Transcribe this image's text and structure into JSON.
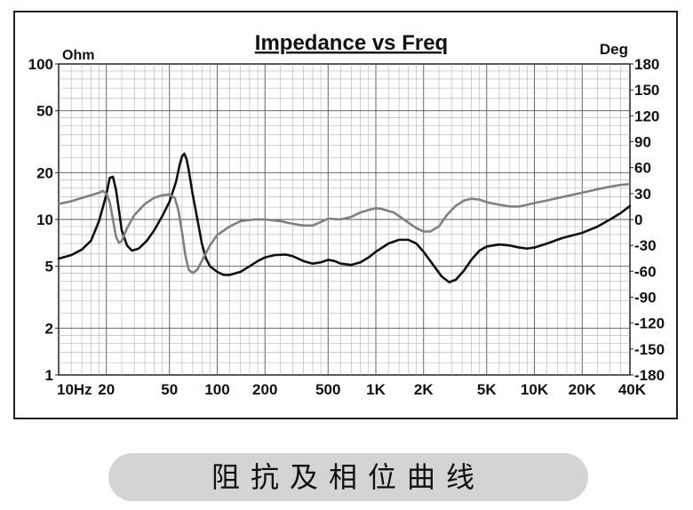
{
  "caption": "阻抗及相位曲线",
  "chart_data": {
    "type": "line",
    "title": "Impedance vs Freq",
    "left_unit": "Ohm",
    "right_unit": "Deg",
    "x_scale": "log",
    "xlim": [
      10,
      40000
    ],
    "left_scale": "log",
    "left_ylim": [
      1,
      100
    ],
    "right_ylim": [
      -180,
      180
    ],
    "grid": true,
    "x_tick_labels": [
      {
        "value": 10,
        "label": "10Hz"
      },
      {
        "value": 20,
        "label": "20"
      },
      {
        "value": 50,
        "label": "50"
      },
      {
        "value": 100,
        "label": "100"
      },
      {
        "value": 200,
        "label": "200"
      },
      {
        "value": 500,
        "label": "500"
      },
      {
        "value": 1000,
        "label": "1K"
      },
      {
        "value": 2000,
        "label": "2K"
      },
      {
        "value": 5000,
        "label": "5K"
      },
      {
        "value": 10000,
        "label": "10K"
      },
      {
        "value": 20000,
        "label": "20K"
      },
      {
        "value": 40000,
        "label": "40K"
      }
    ],
    "left_tick_labels": [
      {
        "value": 100,
        "label": "100"
      },
      {
        "value": 50,
        "label": "50"
      },
      {
        "value": 20,
        "label": "20"
      },
      {
        "value": 10,
        "label": "10"
      },
      {
        "value": 5,
        "label": "5"
      },
      {
        "value": 2,
        "label": "2"
      },
      {
        "value": 1,
        "label": "1"
      }
    ],
    "right_tick_labels": [
      {
        "value": 180,
        "label": "180"
      },
      {
        "value": 150,
        "label": "150"
      },
      {
        "value": 120,
        "label": "120"
      },
      {
        "value": 90,
        "label": "90"
      },
      {
        "value": 60,
        "label": "60"
      },
      {
        "value": 30,
        "label": "30"
      },
      {
        "value": 0,
        "label": "0"
      },
      {
        "value": -30,
        "label": "-30"
      },
      {
        "value": -60,
        "label": "-60"
      },
      {
        "value": -90,
        "label": "-90"
      },
      {
        "value": -120,
        "label": "-120"
      },
      {
        "value": -150,
        "label": "-150"
      },
      {
        "value": -180,
        "label": "-180"
      }
    ],
    "series": [
      {
        "axis": "left",
        "color": "#111111",
        "points": [
          [
            10,
            5.6
          ],
          [
            12,
            5.9
          ],
          [
            14,
            6.4
          ],
          [
            16,
            7.3
          ],
          [
            18,
            9.8
          ],
          [
            20,
            14.5
          ],
          [
            21,
            18.5
          ],
          [
            22,
            18.8
          ],
          [
            23,
            15.5
          ],
          [
            24,
            11.5
          ],
          [
            25,
            8.5
          ],
          [
            27,
            6.8
          ],
          [
            29,
            6.3
          ],
          [
            32,
            6.5
          ],
          [
            36,
            7.3
          ],
          [
            40,
            8.5
          ],
          [
            45,
            10.5
          ],
          [
            50,
            13
          ],
          [
            55,
            17.5
          ],
          [
            58,
            22.5
          ],
          [
            60,
            25.5
          ],
          [
            62,
            26.5
          ],
          [
            64,
            24.5
          ],
          [
            66,
            21
          ],
          [
            70,
            14.5
          ],
          [
            75,
            10
          ],
          [
            80,
            7
          ],
          [
            85,
            5.6
          ],
          [
            90,
            5
          ],
          [
            100,
            4.6
          ],
          [
            110,
            4.4
          ],
          [
            120,
            4.4
          ],
          [
            140,
            4.6
          ],
          [
            160,
            5
          ],
          [
            180,
            5.4
          ],
          [
            200,
            5.7
          ],
          [
            230,
            5.9
          ],
          [
            270,
            5.95
          ],
          [
            300,
            5.8
          ],
          [
            350,
            5.4
          ],
          [
            400,
            5.2
          ],
          [
            450,
            5.3
          ],
          [
            500,
            5.5
          ],
          [
            550,
            5.4
          ],
          [
            600,
            5.2
          ],
          [
            700,
            5.1
          ],
          [
            800,
            5.3
          ],
          [
            900,
            5.7
          ],
          [
            1000,
            6.2
          ],
          [
            1200,
            7
          ],
          [
            1400,
            7.4
          ],
          [
            1600,
            7.4
          ],
          [
            1800,
            7
          ],
          [
            2000,
            6.2
          ],
          [
            2300,
            5.1
          ],
          [
            2600,
            4.3
          ],
          [
            2900,
            3.95
          ],
          [
            3200,
            4.1
          ],
          [
            3600,
            4.7
          ],
          [
            4000,
            5.5
          ],
          [
            4500,
            6.3
          ],
          [
            5000,
            6.7
          ],
          [
            6000,
            6.9
          ],
          [
            7000,
            6.8
          ],
          [
            8000,
            6.6
          ],
          [
            9000,
            6.5
          ],
          [
            10000,
            6.6
          ],
          [
            12000,
            7
          ],
          [
            15000,
            7.6
          ],
          [
            20000,
            8.2
          ],
          [
            25000,
            9
          ],
          [
            30000,
            10
          ],
          [
            35000,
            11
          ],
          [
            40000,
            12.2
          ]
        ]
      },
      {
        "axis": "right",
        "color": "#808080",
        "points": [
          [
            10,
            18
          ],
          [
            12,
            21
          ],
          [
            14,
            25
          ],
          [
            16,
            28
          ],
          [
            18,
            31
          ],
          [
            19,
            33
          ],
          [
            20,
            30
          ],
          [
            21,
            20
          ],
          [
            22,
            0
          ],
          [
            23,
            -20
          ],
          [
            24,
            -27
          ],
          [
            25,
            -25
          ],
          [
            27,
            -10
          ],
          [
            30,
            5
          ],
          [
            35,
            18
          ],
          [
            40,
            25
          ],
          [
            45,
            28
          ],
          [
            50,
            29
          ],
          [
            54,
            25
          ],
          [
            57,
            10
          ],
          [
            60,
            -15
          ],
          [
            63,
            -42
          ],
          [
            66,
            -58
          ],
          [
            70,
            -62
          ],
          [
            75,
            -58
          ],
          [
            80,
            -48
          ],
          [
            90,
            -30
          ],
          [
            100,
            -18
          ],
          [
            120,
            -8
          ],
          [
            140,
            -2
          ],
          [
            170,
            0
          ],
          [
            200,
            0
          ],
          [
            250,
            -2
          ],
          [
            300,
            -5
          ],
          [
            350,
            -7
          ],
          [
            400,
            -7
          ],
          [
            450,
            -3
          ],
          [
            500,
            1
          ],
          [
            600,
            0
          ],
          [
            700,
            3
          ],
          [
            800,
            8
          ],
          [
            900,
            11
          ],
          [
            1000,
            13
          ],
          [
            1100,
            12
          ],
          [
            1300,
            8
          ],
          [
            1500,
            0
          ],
          [
            1800,
            -10
          ],
          [
            2000,
            -14
          ],
          [
            2200,
            -14
          ],
          [
            2500,
            -8
          ],
          [
            2800,
            5
          ],
          [
            3200,
            16
          ],
          [
            3600,
            22
          ],
          [
            4000,
            24
          ],
          [
            4500,
            23
          ],
          [
            5000,
            20
          ],
          [
            6000,
            17
          ],
          [
            7000,
            15
          ],
          [
            8000,
            15
          ],
          [
            9000,
            17
          ],
          [
            10000,
            19
          ],
          [
            12000,
            22
          ],
          [
            15000,
            26
          ],
          [
            20000,
            31
          ],
          [
            25000,
            35
          ],
          [
            30000,
            38
          ],
          [
            35000,
            40
          ],
          [
            40000,
            41
          ]
        ]
      }
    ]
  }
}
